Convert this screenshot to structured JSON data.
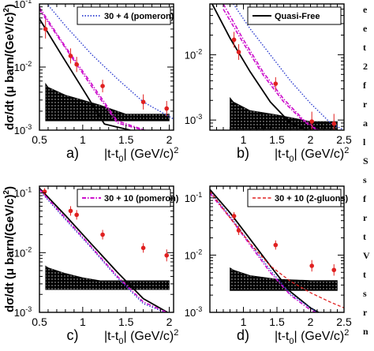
{
  "side_text_fragments": [
    "e",
    "e",
    "t",
    "2",
    "f",
    "r",
    "a",
    "l",
    "S",
    "s",
    "f",
    "r",
    "t",
    "V",
    "t",
    "s",
    "r",
    "n"
  ],
  "colors": {
    "data_points": "#e02020",
    "band": "#000000",
    "solid": "#000000",
    "dotted_blue": "#2f3fd0",
    "dashdot_magenta": "#cc10cc",
    "dashed_red": "#e02020"
  },
  "chart_data": [
    {
      "type": "line",
      "panel_label": "a)",
      "xlabel": "|t-t0| (GeV/c)2",
      "ylabel": "dσ/dt (μ barn/(GeV/c)2)",
      "xlim": [
        0.5,
        2.05
      ],
      "ylim": [
        0.001,
        0.1
      ],
      "yscale": "log",
      "x_ticks": [
        "0.5",
        "1",
        "1.5",
        "2"
      ],
      "y_ticks": [
        "10-3",
        "10-2",
        "10-1"
      ],
      "legend": {
        "position": "top-right",
        "label": "30 + 4 (pomeron)"
      },
      "data_points": {
        "x": [
          0.57,
          0.86,
          0.93,
          1.23,
          1.7,
          1.97
        ],
        "y": [
          0.04,
          0.015,
          0.011,
          0.005,
          0.0028,
          0.0022
        ],
        "yerr": [
          0.15,
          0.12,
          0.12,
          0.1,
          0.12,
          0.12
        ]
      },
      "band": {
        "x": [
          0.57,
          0.6,
          0.8,
          1.0,
          1.2,
          1.5,
          2.0
        ],
        "upper": [
          0.0055,
          0.0048,
          0.0036,
          0.003,
          0.0025,
          0.0018,
          0.0018
        ],
        "lower": [
          0.0014,
          0.0014,
          0.0014,
          0.0014,
          0.0014,
          0.0014,
          0.0014
        ]
      },
      "series": [
        {
          "style": "solid",
          "x": [
            0.5,
            0.75,
            1.0,
            1.25,
            1.55
          ],
          "y": [
            0.058,
            0.016,
            0.0045,
            0.00125,
            0.001
          ]
        },
        {
          "style": "dashdot_magenta",
          "x": [
            0.5,
            0.8,
            1.1,
            1.4,
            1.7
          ],
          "y": [
            0.082,
            0.02,
            0.005,
            0.0013,
            0.001
          ]
        },
        {
          "style": "dashdot_magenta",
          "x": [
            0.5,
            0.8,
            1.1,
            1.4,
            1.72
          ],
          "y": [
            0.088,
            0.021,
            0.0055,
            0.0014,
            0.001
          ]
        },
        {
          "style": "dotted_blue",
          "name": "30 + 4 (pomeron)",
          "x": [
            0.5,
            0.8,
            1.1,
            1.4,
            1.7,
            2.05
          ],
          "y": [
            0.14,
            0.045,
            0.016,
            0.0065,
            0.0028,
            0.0015
          ]
        }
      ]
    },
    {
      "type": "line",
      "panel_label": "b)",
      "xlabel": "|t-t0| (GeV/c)2",
      "xlim": [
        0.5,
        2.5
      ],
      "ylim": [
        0.0007,
        0.06
      ],
      "yscale": "log",
      "x_ticks": [
        "1",
        "1.5",
        "2",
        "2.5"
      ],
      "y_ticks": [
        "10-3",
        "10-2"
      ],
      "legend": {
        "position": "top-right",
        "label": "Quasi-Free"
      },
      "data_points": {
        "x": [
          0.86,
          0.93,
          1.48,
          2.02,
          2.35
        ],
        "y": [
          0.017,
          0.011,
          0.0036,
          0.00095,
          0.00088
        ],
        "yerr": [
          0.12,
          0.12,
          0.1,
          0.15,
          0.15
        ]
      },
      "band": {
        "x": [
          0.8,
          0.85,
          1.1,
          1.5,
          2.0,
          2.4
        ],
        "upper": [
          0.0022,
          0.0019,
          0.0014,
          0.0012,
          0.00095,
          0.00095
        ],
        "lower": [
          0.00072,
          0.00072,
          0.00072,
          0.00072,
          0.00072,
          0.00072
        ]
      },
      "series": [
        {
          "style": "solid",
          "name": "Quasi-Free",
          "x": [
            0.5,
            0.8,
            1.1,
            1.4,
            1.7,
            1.95
          ],
          "y": [
            0.07,
            0.018,
            0.0055,
            0.0019,
            0.0009,
            0.0007
          ]
        },
        {
          "style": "dashdot_magenta",
          "x": [
            0.7,
            1.0,
            1.3,
            1.6,
            1.9,
            2.1
          ],
          "y": [
            0.05,
            0.015,
            0.0048,
            0.0019,
            0.00095,
            0.0007
          ]
        },
        {
          "style": "dashdot_magenta",
          "x": [
            0.7,
            1.0,
            1.3,
            1.6,
            1.9,
            2.12
          ],
          "y": [
            0.06,
            0.017,
            0.0053,
            0.0021,
            0.001,
            0.0007
          ]
        },
        {
          "style": "dotted_blue",
          "x": [
            0.85,
            1.1,
            1.4,
            1.7,
            2.0,
            2.3,
            2.5
          ],
          "y": [
            0.06,
            0.025,
            0.01,
            0.004,
            0.0018,
            0.0009,
            0.0007
          ]
        }
      ]
    },
    {
      "type": "line",
      "panel_label": "c)",
      "xlabel": "|t-t0| (GeV/c)2",
      "ylabel": "dσ/dt (μ barn/(GeV/c)2)",
      "xlim": [
        0.5,
        2.05
      ],
      "ylim": [
        0.001,
        0.13
      ],
      "yscale": "log",
      "x_ticks": [
        "0.5",
        "1",
        "1.5",
        "2"
      ],
      "y_ticks": [
        "10-3",
        "10-2",
        "10-1"
      ],
      "legend": {
        "position": "top-right",
        "label": "30 + 10 (pomeron)"
      },
      "data_points": {
        "x": [
          0.56,
          0.86,
          0.93,
          1.23,
          1.7,
          1.97
        ],
        "y": [
          0.105,
          0.05,
          0.043,
          0.02,
          0.012,
          0.009
        ],
        "yerr": [
          0.06,
          0.08,
          0.08,
          0.08,
          0.08,
          0.1
        ]
      },
      "band": {
        "x": [
          0.57,
          0.6,
          0.8,
          1.0,
          1.2,
          1.5,
          2.0
        ],
        "upper": [
          0.006,
          0.0056,
          0.0045,
          0.0038,
          0.0034,
          0.0034,
          0.0034
        ],
        "lower": [
          0.0024,
          0.0024,
          0.0024,
          0.0024,
          0.0024,
          0.0024,
          0.0024
        ]
      },
      "series": [
        {
          "style": "solid",
          "x": [
            0.5,
            0.8,
            1.1,
            1.4,
            1.7,
            1.98
          ],
          "y": [
            0.12,
            0.042,
            0.014,
            0.0047,
            0.0017,
            0.001
          ]
        },
        {
          "style": "dotted_blue",
          "x": [
            0.5,
            0.8,
            1.1,
            1.4,
            1.7,
            1.95
          ],
          "y": [
            0.11,
            0.036,
            0.012,
            0.0038,
            0.0014,
            0.001
          ]
        },
        {
          "style": "dashdot_magenta",
          "name": "30 + 10 (pomeron)",
          "x": [
            0.5,
            0.8,
            1.1,
            1.4,
            1.7,
            1.97
          ],
          "y": [
            0.115,
            0.038,
            0.0125,
            0.004,
            0.0015,
            0.001
          ]
        }
      ]
    },
    {
      "type": "line",
      "panel_label": "d)",
      "xlabel": "|t-t0| (GeV/c)2",
      "xlim": [
        0.5,
        2.5
      ],
      "ylim": [
        0.001,
        0.16
      ],
      "yscale": "log",
      "x_ticks": [
        "1",
        "1.5",
        "2",
        "2.5"
      ],
      "y_ticks": [
        "10-3",
        "10-2",
        "10-1"
      ],
      "legend": {
        "position": "top-right",
        "label": "30 + 10 (2-gluons)"
      },
      "data_points": {
        "x": [
          0.86,
          0.93,
          1.48,
          2.02,
          2.35
        ],
        "y": [
          0.048,
          0.027,
          0.015,
          0.0065,
          0.0055
        ],
        "yerr": [
          0.07,
          0.08,
          0.08,
          0.1,
          0.1
        ]
      },
      "band": {
        "x": [
          0.8,
          0.85,
          1.1,
          1.5,
          2.0,
          2.4
        ],
        "upper": [
          0.006,
          0.0055,
          0.0044,
          0.0038,
          0.0036,
          0.0036
        ],
        "lower": [
          0.0024,
          0.0024,
          0.0024,
          0.0024,
          0.0024,
          0.0024
        ]
      },
      "series": [
        {
          "style": "solid",
          "x": [
            0.5,
            0.8,
            1.1,
            1.4,
            1.7,
            2.0,
            2.12
          ],
          "y": [
            0.14,
            0.055,
            0.019,
            0.0065,
            0.0023,
            0.0012,
            0.001
          ]
        },
        {
          "style": "dotted_blue",
          "x": [
            0.5,
            0.8,
            1.1,
            1.4,
            1.7,
            2.0,
            2.1
          ],
          "y": [
            0.13,
            0.048,
            0.016,
            0.0055,
            0.0021,
            0.0012,
            0.001
          ]
        },
        {
          "style": "dashdot_magenta",
          "x": [
            0.5,
            0.8,
            1.1,
            1.4,
            1.7,
            2.0,
            2.08
          ],
          "y": [
            0.12,
            0.045,
            0.015,
            0.005,
            0.002,
            0.0011,
            0.001
          ]
        },
        {
          "style": "dashed_red",
          "name": "30 + 10 (2-gluons)",
          "x": [
            0.5,
            0.8,
            1.1,
            1.4,
            1.7,
            2.0,
            2.3,
            2.5
          ],
          "y": [
            0.13,
            0.045,
            0.016,
            0.0065,
            0.0035,
            0.0022,
            0.0015,
            0.0012
          ]
        }
      ]
    }
  ]
}
